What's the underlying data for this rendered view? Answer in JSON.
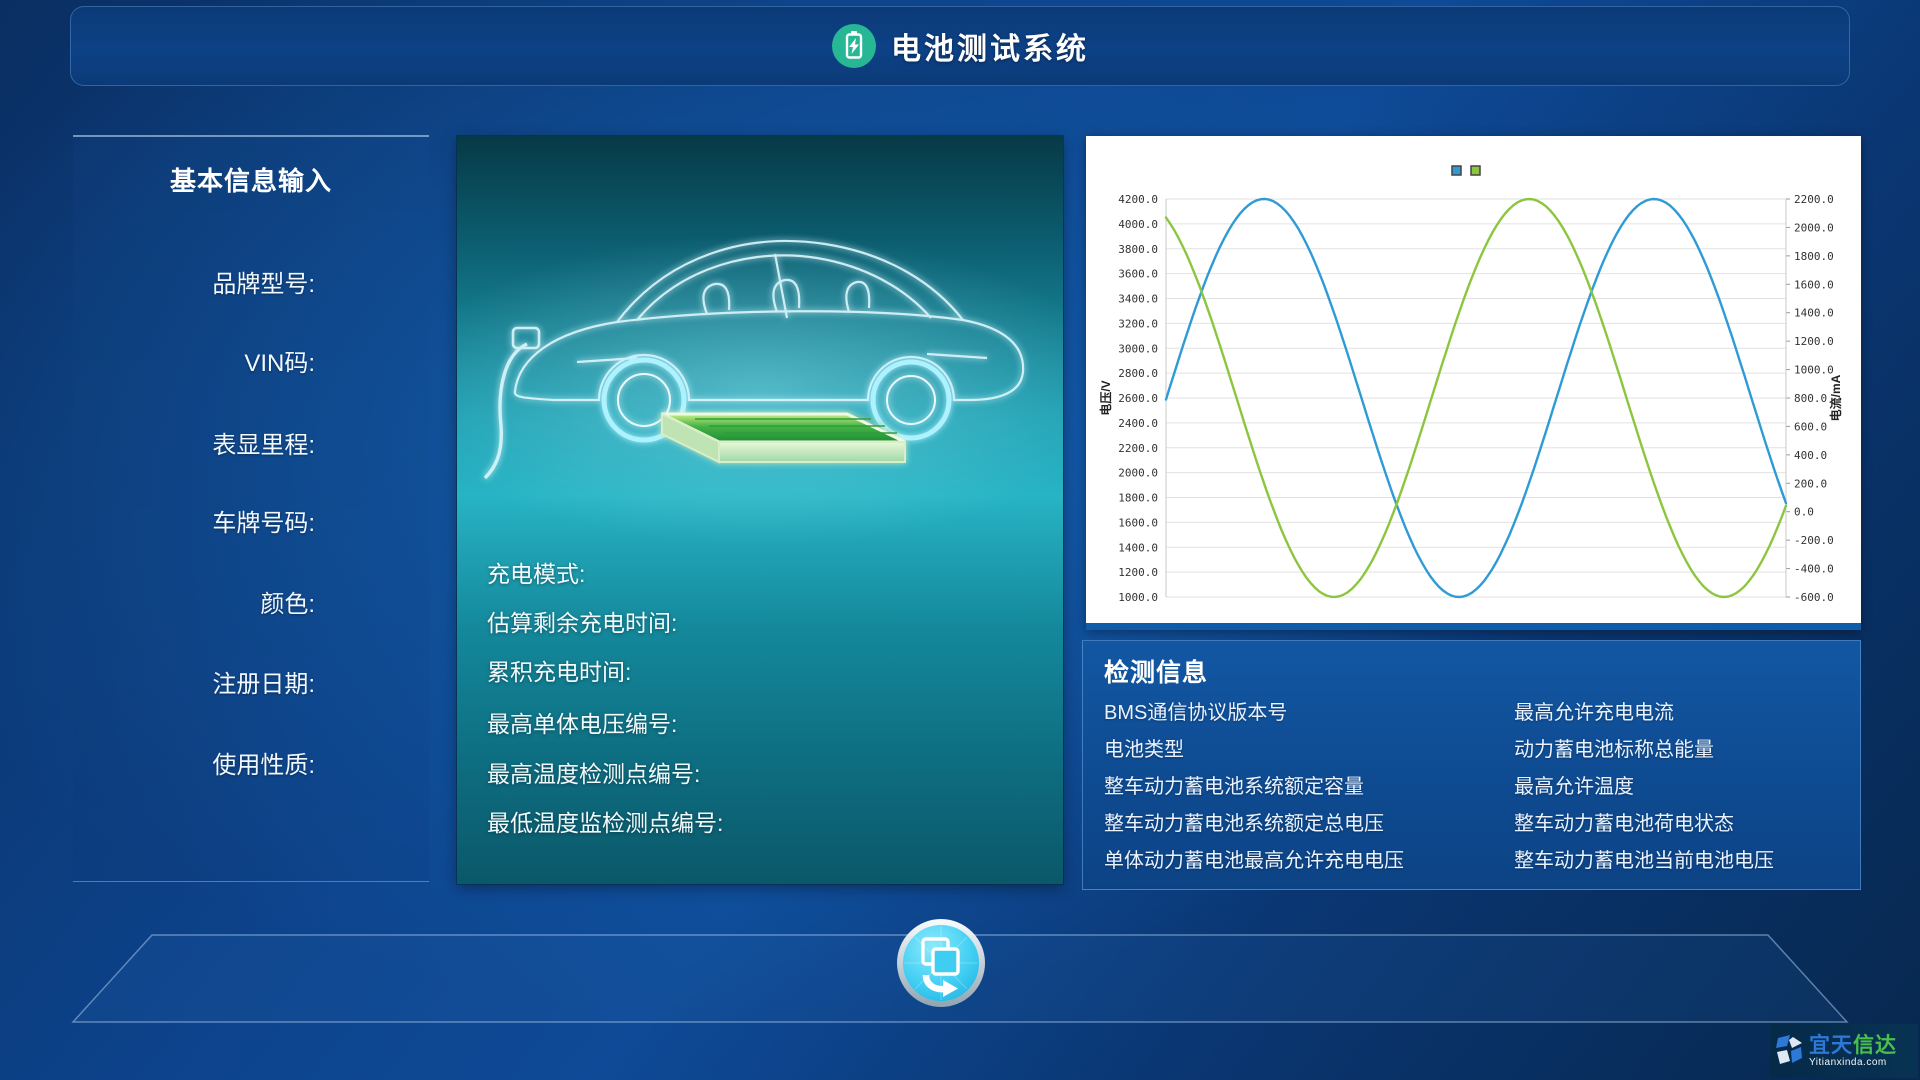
{
  "header": {
    "title": "电池测试系统",
    "icon": "battery-charging-icon",
    "icon_color": "#27b795"
  },
  "basic_info": {
    "title": "基本信息输入",
    "fields": [
      "品牌型号:",
      "VIN码:",
      "表显里程:",
      "车牌号码:",
      "颜色:",
      "注册日期:",
      "使用性质:"
    ]
  },
  "vehicle_panel": {
    "labels": [
      "充电模式:",
      "估算剩余充电时间:",
      "累积充电时间:",
      "最高单体电压编号:",
      "最高温度检测点编号:",
      "最低温度监检测点编号:"
    ]
  },
  "chart_data": {
    "type": "line",
    "background": "#ffffff",
    "grid": "horizontal",
    "legend": {
      "position": "top-center",
      "marker_only": true,
      "entries": [
        {
          "name": "电压",
          "color": "#2E9BD6"
        },
        {
          "name": "电流",
          "color": "#8CC63F"
        }
      ]
    },
    "y_left": {
      "label": "电压/V",
      "range": [
        1000,
        4200
      ],
      "tick_step": 200,
      "tick_format": "0.1f"
    },
    "y_right": {
      "label": "电流/mA",
      "range": [
        -600,
        2200
      ],
      "tick_step": 200,
      "tick_format": "0.1f"
    },
    "series": [
      {
        "name": "电压",
        "axis": "left",
        "color": "#2E9BD6",
        "model": "sine",
        "center": 2600,
        "amplitude": 1600,
        "period_x": 0.629,
        "peak_x": 0.158,
        "key_points": [
          [
            0,
            2600
          ],
          [
            0.158,
            4200
          ],
          [
            0.472,
            1000
          ],
          [
            0.787,
            4200
          ],
          [
            1.0,
            1750
          ]
        ]
      },
      {
        "name": "电流",
        "axis": "left",
        "color": "#8CC63F",
        "model": "sine",
        "center": 2600,
        "amplitude": 1600,
        "period_x": 0.629,
        "peak_x": 0.5855,
        "key_points": [
          [
            0,
            4050
          ],
          [
            0.271,
            1000
          ],
          [
            0.5855,
            4200
          ],
          [
            0.9,
            1000
          ],
          [
            1.0,
            1730
          ]
        ]
      }
    ]
  },
  "detection": {
    "title": "检测信息",
    "left_items": [
      "BMS通信协议版本号",
      "电池类型",
      "整车动力蓄电池系统额定容量",
      "整车动力蓄电池系统额定总电压",
      "单体动力蓄电池最高允许充电电压"
    ],
    "right_items": [
      "最高允许充电电流",
      "动力蓄电池标称总能量",
      "最高允许温度",
      "整车动力蓄电池荷电状态",
      "整车动力蓄电池当前电池电压"
    ]
  },
  "transfer_button": {
    "icon": "copy-transfer-icon"
  },
  "watermark": {
    "brand_blue": "宜天",
    "brand_green": "信达",
    "domain": "Yitianxinda.com",
    "logo": "cube-logo-icon"
  },
  "colors": {
    "curve_blue": "#2E9BD6",
    "curve_green": "#8CC63F",
    "header_panel": "#0d4186",
    "detection_panel": "#10519b",
    "chart_underline": "#0f5cab",
    "icon_green": "#27b795",
    "button_cyan": "#2fc1ee"
  }
}
